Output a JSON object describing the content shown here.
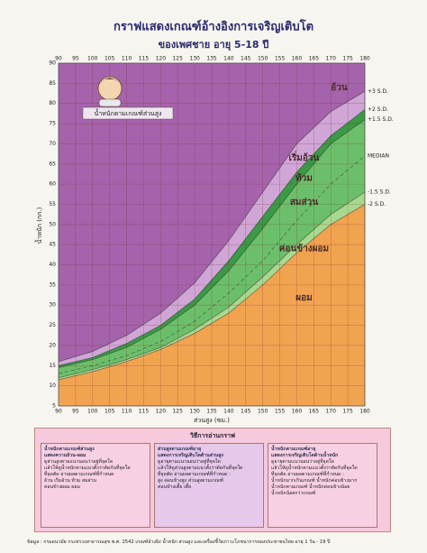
{
  "title": "กราฟแสดงเกณฑ์อ้างอิงการเจริญเติบโต",
  "subtitle": "ของเพศชาย อายุ 5-18 ปี",
  "chart_data": {
    "type": "area",
    "x_label": "ส่วนสูง (ซม.)",
    "y_label": "น้ำหนัก (กก.)",
    "inset_label": "น้ำหนักตามเกณฑ์ส่วนสูง",
    "x": [
      90,
      100,
      110,
      120,
      130,
      140,
      150,
      160,
      170,
      180
    ],
    "series": [
      {
        "name": "-2 S.D.",
        "color": "#f2a350",
        "zone": "ผอม",
        "values": [
          11.5,
          13.5,
          16,
          19,
          23,
          28,
          35,
          43,
          50,
          55
        ]
      },
      {
        "name": "-1.5 S.D.",
        "color": "#a9d98f",
        "zone": "ค่อนข้างผอม",
        "values": [
          12,
          14,
          16.5,
          19.5,
          24,
          29.5,
          37,
          45,
          52.5,
          58
        ]
      },
      {
        "name": "MEDIAN",
        "color": "#6cbf6a",
        "dashed": true,
        "values": [
          13,
          15,
          17.5,
          21,
          26,
          33,
          41,
          51,
          60,
          67
        ]
      },
      {
        "name": "+1.5 S.D.",
        "color": "#6cbf6a",
        "zone": "สมส่วน",
        "values": [
          14.5,
          16.5,
          19.5,
          24,
          30,
          38.5,
          49,
          60,
          70,
          76
        ]
      },
      {
        "name": "+2 S.D.",
        "color": "#3a9a45",
        "zone": "ท้วม",
        "values": [
          15,
          17,
          20.5,
          25,
          31.5,
          41,
          52,
          63,
          72,
          78.5
        ]
      },
      {
        "name": "+3 S.D.",
        "color": "#cfa6d6",
        "zone": "เริ่มอ้วน",
        "values": [
          16,
          18.5,
          22.5,
          28,
          35.5,
          46,
          58,
          70,
          78,
          83
        ]
      }
    ],
    "top_zone": "อ้วน",
    "top_color": "#a563ab",
    "xlim": [
      90,
      180
    ],
    "xticks": [
      90,
      95,
      100,
      105,
      110,
      115,
      120,
      125,
      130,
      135,
      140,
      145,
      150,
      155,
      160,
      165,
      170,
      175,
      180
    ],
    "ylim": [
      5,
      90
    ],
    "yticks": [
      5,
      10,
      15,
      20,
      25,
      30,
      35,
      40,
      45,
      50,
      55,
      60,
      65,
      70,
      75,
      80,
      85,
      90
    ],
    "grid": true
  },
  "guide": {
    "title": "วิธีการอ่านกราฟ",
    "boxes": [
      {
        "heading": [
          "น้ำหนักตามเกณฑ์ส่วนสูง",
          "แสดงความอ้วน-ผอม"
        ],
        "lines": [
          "ดูส่วนสูงตามแนวนอนว่าอยู่ที่จุดใด",
          "แล้วให้ดูน้ำหนักตามแนวตั้งว่าตัดกันที่จุดใด",
          "ที่จุดตัด อ่านผลตามเกณฑ์ที่กำหนด",
          "อ้วน เริ่มอ้วน ท้วม สมส่วน",
          "ค่อนข้างผอม ผอม"
        ]
      },
      {
        "heading": [
          "ส่วนสูงตามเกณฑ์อายุ",
          "แสดงการเจริญเติบโตด้านส่วนสูง"
        ],
        "lines": [
          "ดูอายุตามแนวนอนว่าอยู่ที่จุดใด",
          "แล้วให้ดูส่วนสูงตามแนวตั้งว่าตัดกันที่จุดใด",
          "ที่จุดตัด อ่านผลตามเกณฑ์ที่กำหนด :",
          "สูง ค่อนข้างสูง ส่วนสูงตามเกณฑ์",
          "ค่อนข้างเตี้ย เตี้ย"
        ]
      },
      {
        "heading": [
          "น้ำหนักตามเกณฑ์อายุ",
          "แสดงการเจริญเติบโตด้านน้ำหนัก"
        ],
        "lines": [
          "ดูอายุตามแนวนอนว่าอยู่ที่จุดใด",
          "แล้วให้ดูน้ำหนักตามแนวตั้งว่าตัดกันที่จุดใด",
          "ที่จุดตัด อ่านผลตามเกณฑ์ที่กำหนด :",
          "น้ำหนักมากเกินเกณฑ์ น้ำหนักค่อนข้างมาก",
          "น้ำหนักตามเกณฑ์ น้ำหนักค่อนข้างน้อย",
          "น้ำหนักน้อยกว่าเกณฑ์"
        ]
      }
    ]
  },
  "footer": "ข้อมูล : กรมอนามัย กระทรวงสาธารณสุข พ.ศ. 2542 เกณฑ์อ้างอิง น้ำหนัก ส่วนสูง และเครื่องชี้วัดภาวะโภชนาการของประชาชนไทย อายุ 1 วัน - 19 ปี"
}
